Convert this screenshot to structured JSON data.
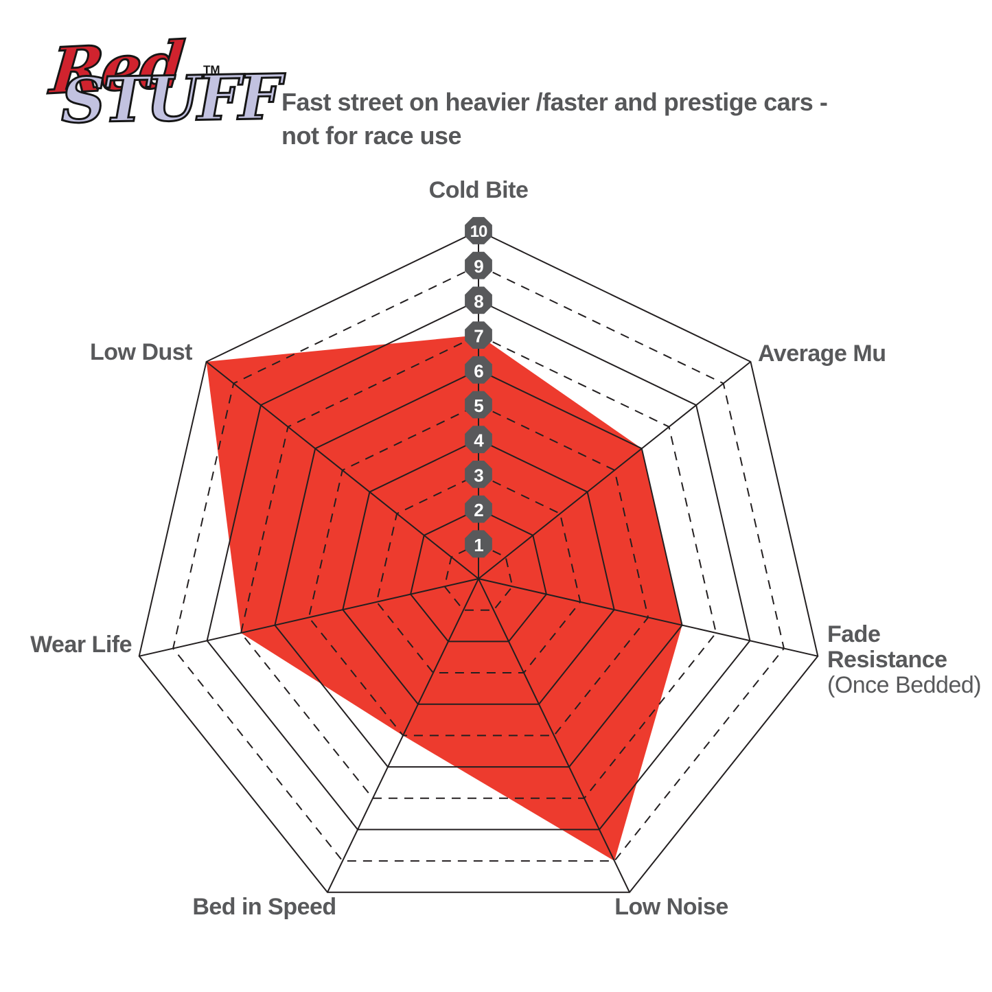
{
  "logo": {
    "word1": "Red",
    "word2": "STUFF",
    "tm": "TM",
    "word1_color": "#d0232e",
    "word2_color": "#c2c2e0"
  },
  "subtitle": {
    "line1": "Fast street on heavier /faster and prestige cars -",
    "line2": "not for race use"
  },
  "chart_data": {
    "type": "radar",
    "title": "EBC RedStuff brake pad performance ratings",
    "categories": [
      "Cold Bite",
      "Average Mu",
      "Fade Resistance (Once Bedded)",
      "Low Noise",
      "Bed in Speed",
      "Wear Life",
      "Low Dust"
    ],
    "values": [
      7,
      6,
      6,
      9,
      5,
      7,
      10
    ],
    "scale": {
      "min": 0,
      "max": 10,
      "ticks": [
        1,
        2,
        3,
        4,
        5,
        6,
        7,
        8,
        9,
        10
      ]
    },
    "rings": {
      "solid_values": [
        2,
        4,
        6,
        8,
        10
      ],
      "dashed_values": [
        1,
        3,
        5,
        7,
        9
      ]
    },
    "grid": "on",
    "legend_position": "none",
    "fill_color": "#ed3b2e",
    "line_color": "#231f20",
    "badge_color": "#58595b",
    "badge_text_color": "#ffffff",
    "label_color": "#58595b"
  },
  "axis_labels": {
    "cold_bite": "Cold Bite",
    "average_mu": "Average Mu",
    "fade_line1": "Fade",
    "fade_line2": "Resistance",
    "fade_line3": "(Once Bedded)",
    "low_noise": "Low Noise",
    "bed_in_speed": "Bed in Speed",
    "wear_life": "Wear Life",
    "low_dust": "Low Dust"
  }
}
